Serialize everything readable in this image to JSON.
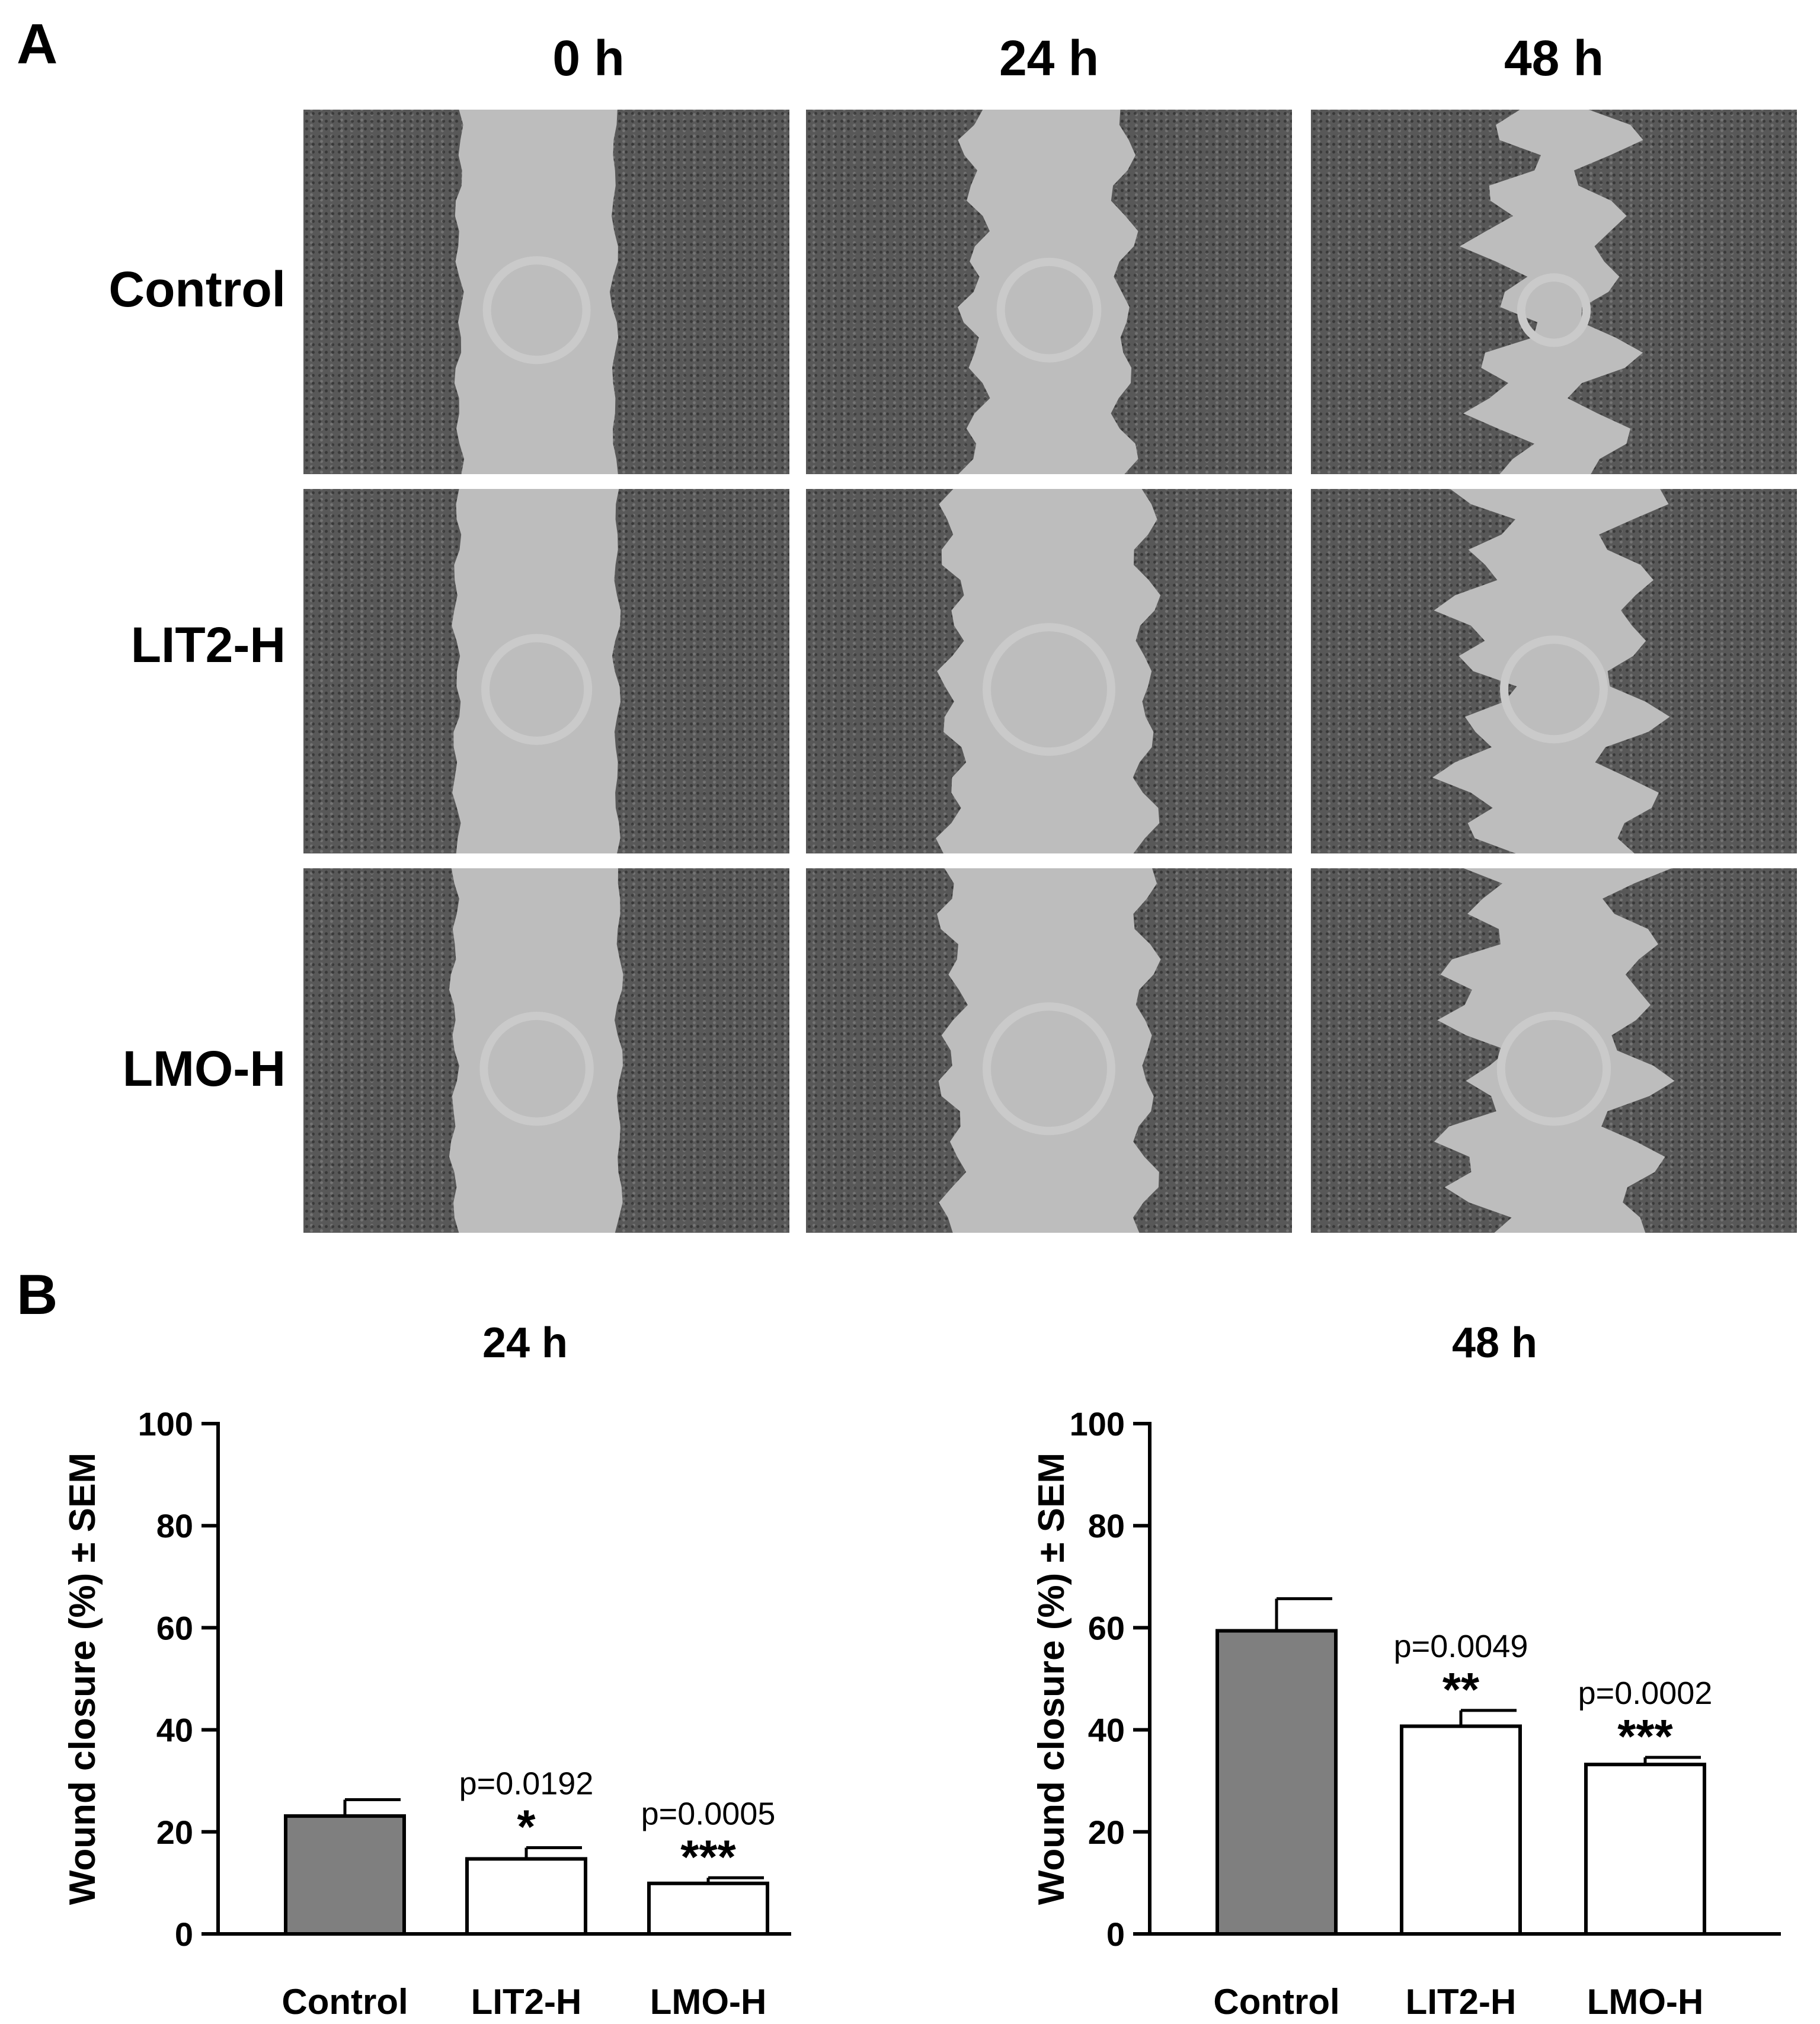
{
  "panels": {
    "a_label": "A",
    "b_label": "B"
  },
  "grid": {
    "columns": [
      "0 h",
      "24 h",
      "48 h"
    ],
    "rows": [
      "Control",
      "LIT2-H",
      "LMO-H"
    ],
    "gap_fraction": [
      [
        0.32,
        0.31,
        0.21
      ],
      [
        0.33,
        0.4,
        0.32
      ],
      [
        0.34,
        0.4,
        0.34
      ]
    ]
  },
  "chart_data": [
    {
      "type": "bar",
      "title": "24 h",
      "ylabel": "Wound closure (%) ± SEM",
      "ylim": [
        0,
        100
      ],
      "yticks": [
        0,
        20,
        40,
        60,
        80,
        100
      ],
      "categories": [
        "Control",
        "LIT2-H",
        "LMO-H"
      ],
      "values": [
        23.1,
        14.7,
        9.9
      ],
      "errors": [
        3.2,
        2.2,
        1.1
      ],
      "pvalues": [
        "",
        "p=0.0192",
        "p=0.0005"
      ],
      "stars": [
        "",
        "*",
        "***"
      ],
      "fills": [
        "#7f7f7f",
        "#ffffff",
        "#ffffff"
      ]
    },
    {
      "type": "bar",
      "title": "48 h",
      "ylabel": "Wound closure (%) ± SEM",
      "ylim": [
        0,
        100
      ],
      "yticks": [
        0,
        20,
        40,
        60,
        80,
        100
      ],
      "categories": [
        "Control",
        "LIT2-H",
        "LMO-H"
      ],
      "values": [
        59.4,
        40.7,
        33.2
      ],
      "errors": [
        6.3,
        3.1,
        1.4
      ],
      "pvalues": [
        "",
        "p=0.0049",
        "p=0.0002"
      ],
      "stars": [
        "",
        "**",
        "***"
      ],
      "fills": [
        "#7f7f7f",
        "#ffffff",
        "#ffffff"
      ]
    }
  ]
}
